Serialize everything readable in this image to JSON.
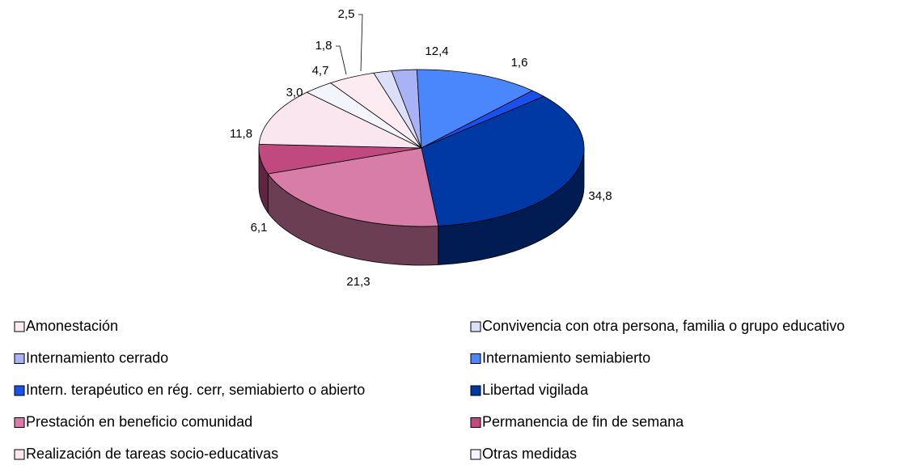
{
  "chart_data": {
    "type": "pie3d",
    "categories": [
      "Amonestación",
      "Convivencia con otra persona, familia o grupo educativo",
      "Internamiento cerrado",
      "Internamiento semiabierto",
      "Intern. terapéutico en rég. cerr, semiabierto o abierto",
      "Libertad vigilada",
      "Prestación en beneficio comunidad",
      "Permanencia de fin de semana",
      "Realización de tareas socio-educativas",
      "Otras medidas"
    ],
    "values": [
      4.7,
      1.8,
      2.5,
      12.4,
      1.6,
      34.8,
      21.3,
      6.1,
      11.8,
      3.0
    ],
    "value_labels": [
      "4,7",
      "1,8",
      "2,5",
      "12,4",
      "1,6",
      "34,8",
      "21,3",
      "6,1",
      "11,8",
      "3,0"
    ],
    "colors": [
      "#fcecf2",
      "#dcdff8",
      "#a8b2f4",
      "#4a86fc",
      "#1a50ec",
      "#0038a4",
      "#d87ca8",
      "#c04a80",
      "#f9e6ee",
      "#f4f4fe"
    ],
    "legend": "bottom"
  }
}
